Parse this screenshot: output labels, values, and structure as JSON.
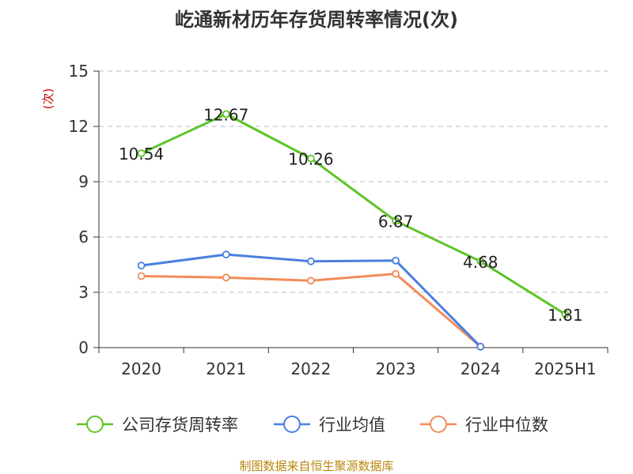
{
  "chart_data": {
    "type": "line",
    "title": "屹通新材历年存货周转率情况(次)",
    "ylabel": "(次)",
    "xlabel": "",
    "categories": [
      "2020",
      "2021",
      "2022",
      "2023",
      "2024",
      "2025H1"
    ],
    "ylim": [
      0,
      15
    ],
    "yticks": [
      "0",
      "3",
      "6",
      "9",
      "12",
      "15"
    ],
    "grid": true,
    "legend_position": "bottom",
    "series": [
      {
        "name": "公司存货周转率",
        "color": "#5cc427",
        "values": [
          10.54,
          12.67,
          10.26,
          6.87,
          4.68,
          1.81
        ],
        "labels": [
          "10.54",
          "12.67",
          "10.26",
          "6.87",
          "4.68",
          "1.81"
        ]
      },
      {
        "name": "行业均值",
        "color": "#4a7fe0",
        "values": [
          4.45,
          5.05,
          4.68,
          4.72,
          0.05,
          null
        ]
      },
      {
        "name": "行业中位数",
        "color": "#f28c5b",
        "values": [
          3.88,
          3.8,
          3.63,
          4.0,
          0.05,
          null
        ]
      }
    ],
    "source": "制图数据来自恒生聚源数据库"
  }
}
